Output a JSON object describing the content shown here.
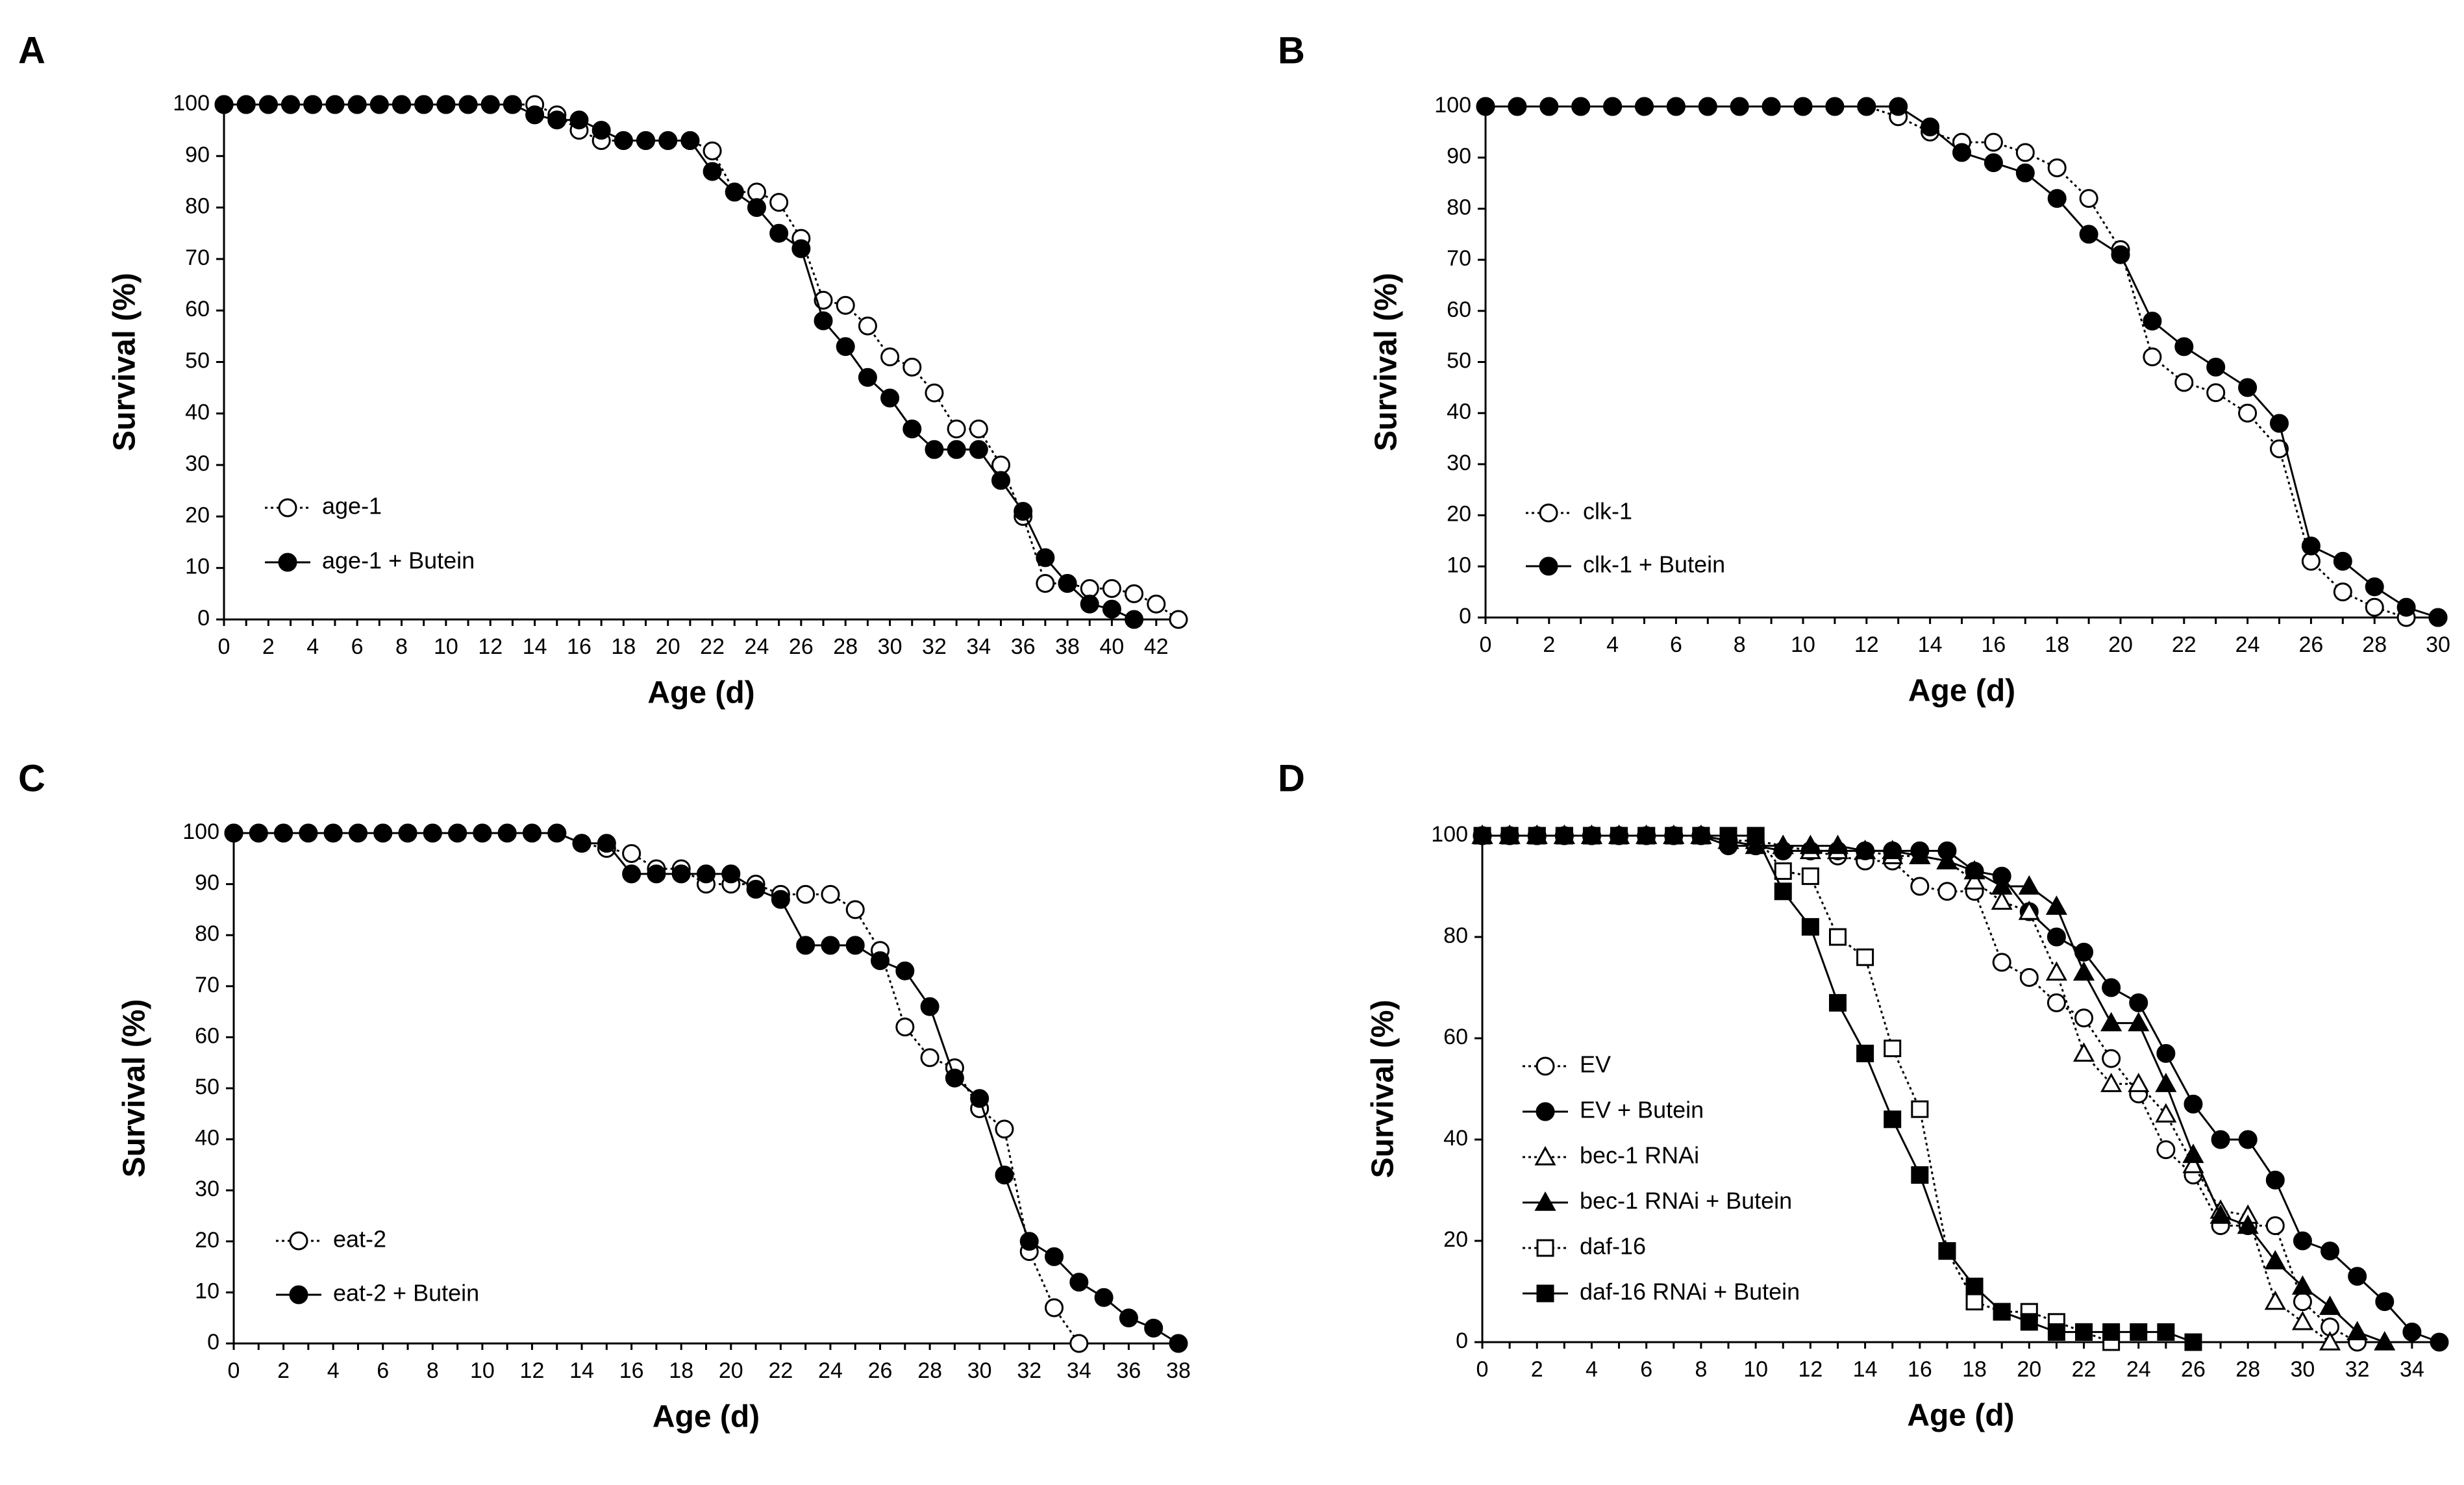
{
  "chart_data": [
    {
      "panel": "A",
      "type": "line",
      "title": "",
      "xlabel": "Age (d)",
      "ylabel": "Survival (%)",
      "xlim": [
        0,
        43
      ],
      "ylim": [
        0,
        100
      ],
      "xticks": [
        0,
        2,
        4,
        6,
        8,
        10,
        12,
        14,
        16,
        18,
        20,
        22,
        24,
        26,
        28,
        30,
        32,
        34,
        36,
        38,
        40,
        42
      ],
      "yticks": [
        0,
        10,
        20,
        30,
        40,
        50,
        60,
        70,
        80,
        90,
        100
      ],
      "legend_position": "bottom-left",
      "series": [
        {
          "name": "age-1",
          "marker": "circle",
          "filled": false,
          "line": "dotted",
          "x": [
            0,
            1,
            2,
            3,
            4,
            5,
            6,
            7,
            8,
            9,
            10,
            11,
            12,
            13,
            14,
            15,
            16,
            17,
            18,
            19,
            20,
            21,
            22,
            23,
            24,
            25,
            26,
            27,
            28,
            29,
            30,
            31,
            32,
            33,
            34,
            35,
            36,
            37,
            38,
            39,
            40,
            41,
            42,
            43
          ],
          "y": [
            100,
            100,
            100,
            100,
            100,
            100,
            100,
            100,
            100,
            100,
            100,
            100,
            100,
            100,
            100,
            98,
            95,
            93,
            93,
            93,
            93,
            93,
            91,
            83,
            83,
            81,
            74,
            62,
            61,
            57,
            51,
            49,
            44,
            37,
            37,
            30,
            20,
            7,
            7,
            6,
            6,
            5,
            3,
            0
          ]
        },
        {
          "name": "age-1 + Butein",
          "marker": "circle",
          "filled": true,
          "line": "solid",
          "x": [
            0,
            1,
            2,
            3,
            4,
            5,
            6,
            7,
            8,
            9,
            10,
            11,
            12,
            13,
            14,
            15,
            16,
            17,
            18,
            19,
            20,
            21,
            22,
            23,
            24,
            25,
            26,
            27,
            28,
            29,
            30,
            31,
            32,
            33,
            34,
            35,
            36,
            37,
            38,
            39,
            40,
            41
          ],
          "y": [
            100,
            100,
            100,
            100,
            100,
            100,
            100,
            100,
            100,
            100,
            100,
            100,
            100,
            100,
            98,
            97,
            97,
            95,
            93,
            93,
            93,
            93,
            87,
            83,
            80,
            75,
            72,
            58,
            53,
            47,
            43,
            37,
            33,
            33,
            33,
            27,
            21,
            12,
            7,
            3,
            2,
            0
          ]
        }
      ]
    },
    {
      "panel": "B",
      "type": "line",
      "title": "",
      "xlabel": "Age (d)",
      "ylabel": "Survival (%)",
      "xlim": [
        0,
        30
      ],
      "ylim": [
        0,
        100
      ],
      "xticks": [
        0,
        2,
        4,
        6,
        8,
        10,
        12,
        14,
        16,
        18,
        20,
        22,
        24,
        26,
        28,
        30
      ],
      "yticks": [
        0,
        10,
        20,
        30,
        40,
        50,
        60,
        70,
        80,
        90,
        100
      ],
      "legend_position": "bottom-left",
      "series": [
        {
          "name": "clk-1",
          "marker": "circle",
          "filled": false,
          "line": "dotted",
          "x": [
            0,
            1,
            2,
            3,
            4,
            5,
            6,
            7,
            8,
            9,
            10,
            11,
            12,
            13,
            14,
            15,
            16,
            17,
            18,
            19,
            20,
            21,
            22,
            23,
            24,
            25,
            26,
            27,
            28,
            29,
            30
          ],
          "y": [
            100,
            100,
            100,
            100,
            100,
            100,
            100,
            100,
            100,
            100,
            100,
            100,
            100,
            98,
            95,
            93,
            93,
            91,
            88,
            82,
            72,
            51,
            46,
            44,
            40,
            33,
            11,
            5,
            2,
            0,
            0
          ]
        },
        {
          "name": "clk-1 + Butein",
          "marker": "circle",
          "filled": true,
          "line": "solid",
          "x": [
            0,
            1,
            2,
            3,
            4,
            5,
            6,
            7,
            8,
            9,
            10,
            11,
            12,
            13,
            14,
            15,
            16,
            17,
            18,
            19,
            20,
            21,
            22,
            23,
            24,
            25,
            26,
            27,
            28,
            29,
            30
          ],
          "y": [
            100,
            100,
            100,
            100,
            100,
            100,
            100,
            100,
            100,
            100,
            100,
            100,
            100,
            100,
            96,
            91,
            89,
            87,
            82,
            75,
            71,
            58,
            53,
            49,
            45,
            38,
            14,
            11,
            6,
            2,
            0
          ]
        }
      ]
    },
    {
      "panel": "C",
      "type": "line",
      "title": "",
      "xlabel": "Age (d)",
      "ylabel": "Survival (%)",
      "xlim": [
        0,
        38
      ],
      "ylim": [
        0,
        100
      ],
      "xticks": [
        0,
        2,
        4,
        6,
        8,
        10,
        12,
        14,
        16,
        18,
        20,
        22,
        24,
        26,
        28,
        30,
        32,
        34,
        36,
        38
      ],
      "yticks": [
        0,
        10,
        20,
        30,
        40,
        50,
        60,
        70,
        80,
        90,
        100
      ],
      "legend_position": "bottom-left",
      "series": [
        {
          "name": "eat-2",
          "marker": "circle",
          "filled": false,
          "line": "dotted",
          "x": [
            0,
            1,
            2,
            3,
            4,
            5,
            6,
            7,
            8,
            9,
            10,
            11,
            12,
            13,
            14,
            15,
            16,
            17,
            18,
            19,
            20,
            21,
            22,
            23,
            24,
            25,
            26,
            27,
            28,
            29,
            30,
            31,
            32,
            33,
            34
          ],
          "y": [
            100,
            100,
            100,
            100,
            100,
            100,
            100,
            100,
            100,
            100,
            100,
            100,
            100,
            100,
            98,
            97,
            96,
            93,
            93,
            90,
            90,
            90,
            88,
            88,
            88,
            85,
            77,
            62,
            56,
            54,
            46,
            42,
            18,
            7,
            0
          ]
        },
        {
          "name": "eat-2 + Butein",
          "marker": "circle",
          "filled": true,
          "line": "solid",
          "x": [
            0,
            1,
            2,
            3,
            4,
            5,
            6,
            7,
            8,
            9,
            10,
            11,
            12,
            13,
            14,
            15,
            16,
            17,
            18,
            19,
            20,
            21,
            22,
            23,
            24,
            25,
            26,
            27,
            28,
            29,
            30,
            31,
            32,
            33,
            34,
            35,
            36,
            37,
            38
          ],
          "y": [
            100,
            100,
            100,
            100,
            100,
            100,
            100,
            100,
            100,
            100,
            100,
            100,
            100,
            100,
            98,
            98,
            92,
            92,
            92,
            92,
            92,
            89,
            87,
            78,
            78,
            78,
            75,
            73,
            66,
            52,
            48,
            33,
            20,
            17,
            12,
            9,
            5,
            3,
            0
          ]
        }
      ]
    },
    {
      "panel": "D",
      "type": "line",
      "title": "",
      "xlabel": "Age (d)",
      "ylabel": "Survival (%)",
      "xlim": [
        0,
        35
      ],
      "ylim": [
        0,
        100
      ],
      "xticks": [
        0,
        2,
        4,
        6,
        8,
        10,
        12,
        14,
        16,
        18,
        20,
        22,
        24,
        26,
        28,
        30,
        32,
        34
      ],
      "yticks": [
        0,
        20,
        40,
        60,
        80,
        100
      ],
      "legend_position": "bottom-left",
      "series": [
        {
          "name": "EV",
          "marker": "circle",
          "filled": false,
          "line": "dotted",
          "x": [
            0,
            1,
            2,
            3,
            4,
            5,
            6,
            7,
            8,
            9,
            10,
            11,
            12,
            13,
            14,
            15,
            16,
            17,
            18,
            19,
            20,
            21,
            22,
            23,
            24,
            25,
            26,
            27,
            28,
            29,
            30,
            31,
            32
          ],
          "y": [
            100,
            100,
            100,
            100,
            100,
            100,
            100,
            100,
            100,
            99,
            98,
            97,
            97,
            96,
            95,
            95,
            90,
            89,
            89,
            75,
            72,
            67,
            64,
            56,
            49,
            38,
            33,
            23,
            23,
            23,
            8,
            3,
            0
          ]
        },
        {
          "name": "EV + Butein",
          "marker": "circle",
          "filled": true,
          "line": "solid",
          "x": [
            0,
            1,
            2,
            3,
            4,
            5,
            6,
            7,
            8,
            9,
            10,
            11,
            12,
            13,
            14,
            15,
            16,
            17,
            18,
            19,
            20,
            21,
            22,
            23,
            24,
            25,
            26,
            27,
            28,
            29,
            30,
            31,
            32,
            33,
            34,
            35
          ],
          "y": [
            100,
            100,
            100,
            100,
            100,
            100,
            100,
            100,
            100,
            98,
            98,
            97,
            97,
            97,
            97,
            97,
            97,
            97,
            93,
            92,
            85,
            80,
            77,
            70,
            67,
            57,
            47,
            40,
            40,
            32,
            20,
            18,
            13,
            8,
            2,
            0
          ]
        },
        {
          "name": "bec-1 RNAi",
          "marker": "triangle",
          "filled": false,
          "line": "dotted",
          "x": [
            0,
            1,
            2,
            3,
            4,
            5,
            6,
            7,
            8,
            9,
            10,
            11,
            12,
            13,
            14,
            15,
            16,
            17,
            18,
            19,
            20,
            21,
            22,
            23,
            24,
            25,
            26,
            27,
            28,
            29,
            30,
            31
          ],
          "y": [
            100,
            100,
            100,
            100,
            100,
            100,
            100,
            100,
            100,
            99,
            99,
            98,
            97,
            97,
            97,
            96,
            96,
            95,
            91,
            87,
            85,
            73,
            57,
            51,
            51,
            45,
            35,
            26,
            25,
            8,
            4,
            0
          ]
        },
        {
          "name": "bec-1 RNAi + Butein",
          "marker": "triangle",
          "filled": true,
          "line": "solid",
          "x": [
            0,
            1,
            2,
            3,
            4,
            5,
            6,
            7,
            8,
            9,
            10,
            11,
            12,
            13,
            14,
            15,
            16,
            17,
            18,
            19,
            20,
            21,
            22,
            23,
            24,
            25,
            26,
            27,
            28,
            29,
            30,
            31,
            32,
            33
          ],
          "y": [
            100,
            100,
            100,
            100,
            100,
            100,
            100,
            100,
            100,
            99,
            98,
            98,
            98,
            98,
            97,
            97,
            96,
            95,
            93,
            90,
            90,
            86,
            73,
            63,
            63,
            51,
            37,
            25,
            23,
            16,
            11,
            7,
            2,
            0
          ]
        },
        {
          "name": "daf-16",
          "marker": "square",
          "filled": false,
          "line": "dotted",
          "x": [
            0,
            1,
            2,
            3,
            4,
            5,
            6,
            7,
            8,
            9,
            10,
            11,
            12,
            13,
            14,
            15,
            16,
            17,
            18,
            19,
            20,
            21,
            22,
            23
          ],
          "y": [
            100,
            100,
            100,
            100,
            100,
            100,
            100,
            100,
            100,
            100,
            100,
            93,
            92,
            80,
            76,
            58,
            46,
            18,
            8,
            6,
            6,
            4,
            2,
            0
          ]
        },
        {
          "name": "daf-16 RNAi + Butein",
          "marker": "square",
          "filled": true,
          "line": "solid",
          "x": [
            0,
            1,
            2,
            3,
            4,
            5,
            6,
            7,
            8,
            9,
            10,
            11,
            12,
            13,
            14,
            15,
            16,
            17,
            18,
            19,
            20,
            21,
            22,
            23,
            24,
            25,
            26
          ],
          "y": [
            100,
            100,
            100,
            100,
            100,
            100,
            100,
            100,
            100,
            100,
            100,
            89,
            82,
            67,
            57,
            44,
            33,
            18,
            11,
            6,
            4,
            2,
            2,
            2,
            2,
            2,
            0
          ]
        }
      ]
    }
  ]
}
